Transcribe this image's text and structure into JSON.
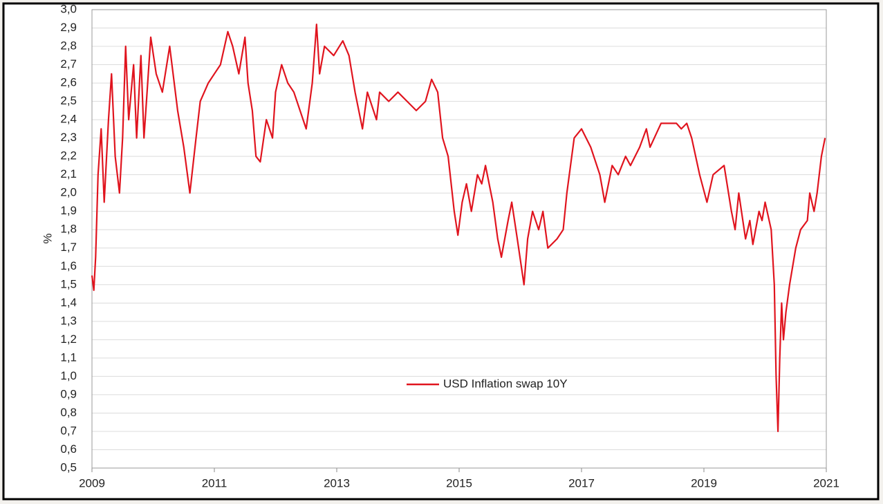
{
  "chart_data": {
    "type": "line",
    "y_label": "%",
    "legend": "center",
    "grid": true,
    "xlim": [
      2009,
      2021
    ],
    "xticks": [
      2009,
      2011,
      2013,
      2015,
      2017,
      2019,
      2021
    ],
    "ylim": [
      0.5,
      3.0
    ],
    "yticks": [
      {
        "value": 0.5,
        "label": "0,5"
      },
      {
        "value": 0.6,
        "label": "0,6"
      },
      {
        "value": 0.7,
        "label": "0,7"
      },
      {
        "value": 0.8,
        "label": "0,8"
      },
      {
        "value": 0.9,
        "label": "0,9"
      },
      {
        "value": 1.0,
        "label": "1,0"
      },
      {
        "value": 1.1,
        "label": "1,1"
      },
      {
        "value": 1.2,
        "label": "1,2"
      },
      {
        "value": 1.3,
        "label": "1,3"
      },
      {
        "value": 1.4,
        "label": "1,4"
      },
      {
        "value": 1.5,
        "label": "1,5"
      },
      {
        "value": 1.6,
        "label": "1,6"
      },
      {
        "value": 1.7,
        "label": "1,7"
      },
      {
        "value": 1.8,
        "label": "1,8"
      },
      {
        "value": 1.9,
        "label": "1,9"
      },
      {
        "value": 2.0,
        "label": "2,0"
      },
      {
        "value": 2.1,
        "label": "2,1"
      },
      {
        "value": 2.2,
        "label": "2,2"
      },
      {
        "value": 2.3,
        "label": "2,3"
      },
      {
        "value": 2.4,
        "label": "2,4"
      },
      {
        "value": 2.5,
        "label": "2,5"
      },
      {
        "value": 2.6,
        "label": "2,6"
      },
      {
        "value": 2.7,
        "label": "2,7"
      },
      {
        "value": 2.8,
        "label": "2,8"
      },
      {
        "value": 2.9,
        "label": "2,9"
      },
      {
        "value": 3.0,
        "label": "3,0"
      }
    ],
    "x": [
      2009.0,
      2009.03,
      2009.06,
      2009.1,
      2009.15,
      2009.2,
      2009.27,
      2009.32,
      2009.38,
      2009.45,
      2009.5,
      2009.55,
      2009.6,
      2009.68,
      2009.73,
      2009.8,
      2009.85,
      2009.9,
      2009.96,
      2010.05,
      2010.15,
      2010.27,
      2010.4,
      2010.5,
      2010.6,
      2010.7,
      2010.77,
      2010.9,
      2011.0,
      2011.1,
      2011.22,
      2011.3,
      2011.4,
      2011.5,
      2011.55,
      2011.62,
      2011.68,
      2011.75,
      2011.85,
      2011.95,
      2012.0,
      2012.1,
      2012.2,
      2012.3,
      2012.4,
      2012.5,
      2012.6,
      2012.67,
      2012.72,
      2012.8,
      2012.95,
      2013.1,
      2013.2,
      2013.3,
      2013.42,
      2013.5,
      2013.65,
      2013.7,
      2013.85,
      2014.0,
      2014.15,
      2014.3,
      2014.45,
      2014.55,
      2014.65,
      2014.73,
      2014.82,
      2014.92,
      2014.98,
      2015.05,
      2015.12,
      2015.2,
      2015.3,
      2015.37,
      2015.43,
      2015.55,
      2015.63,
      2015.69,
      2015.8,
      2015.86,
      2015.95,
      2016.06,
      2016.12,
      2016.2,
      2016.3,
      2016.37,
      2016.45,
      2016.6,
      2016.7,
      2016.76,
      2016.88,
      2017.0,
      2017.15,
      2017.3,
      2017.38,
      2017.5,
      2017.6,
      2017.72,
      2017.8,
      2017.95,
      2018.06,
      2018.12,
      2018.3,
      2018.55,
      2018.63,
      2018.72,
      2018.8,
      2018.93,
      2019.05,
      2019.15,
      2019.33,
      2019.45,
      2019.51,
      2019.57,
      2019.68,
      2019.75,
      2019.8,
      2019.9,
      2019.95,
      2020.0,
      2020.1,
      2020.15,
      2020.18,
      2020.21,
      2020.24,
      2020.27,
      2020.3,
      2020.34,
      2020.4,
      2020.5,
      2020.58,
      2020.69,
      2020.73,
      2020.8,
      2020.85,
      2020.92,
      2020.98
    ],
    "series": [
      {
        "name": "USD Inflation swap 10Y",
        "color": "#e0141e",
        "values": [
          1.55,
          1.47,
          1.65,
          2.1,
          2.35,
          1.95,
          2.4,
          2.65,
          2.2,
          2.0,
          2.3,
          2.8,
          2.4,
          2.7,
          2.3,
          2.75,
          2.3,
          2.55,
          2.85,
          2.65,
          2.55,
          2.8,
          2.45,
          2.25,
          2.0,
          2.3,
          2.5,
          2.6,
          2.65,
          2.7,
          2.88,
          2.8,
          2.65,
          2.85,
          2.6,
          2.45,
          2.2,
          2.17,
          2.4,
          2.3,
          2.55,
          2.7,
          2.6,
          2.55,
          2.45,
          2.35,
          2.6,
          2.92,
          2.65,
          2.8,
          2.75,
          2.83,
          2.75,
          2.55,
          2.35,
          2.55,
          2.4,
          2.55,
          2.5,
          2.55,
          2.5,
          2.45,
          2.5,
          2.62,
          2.55,
          2.3,
          2.2,
          1.9,
          1.77,
          1.95,
          2.05,
          1.9,
          2.1,
          2.05,
          2.15,
          1.95,
          1.75,
          1.65,
          1.85,
          1.95,
          1.75,
          1.5,
          1.75,
          1.9,
          1.8,
          1.9,
          1.7,
          1.75,
          1.8,
          2.0,
          2.3,
          2.35,
          2.25,
          2.1,
          1.95,
          2.15,
          2.1,
          2.2,
          2.15,
          2.25,
          2.35,
          2.25,
          2.38,
          2.38,
          2.35,
          2.38,
          2.3,
          2.1,
          1.95,
          2.1,
          2.15,
          1.9,
          1.8,
          2.0,
          1.75,
          1.85,
          1.72,
          1.9,
          1.85,
          1.95,
          1.8,
          1.5,
          1.0,
          0.7,
          1.1,
          1.4,
          1.2,
          1.35,
          1.5,
          1.7,
          1.8,
          1.85,
          2.0,
          1.9,
          2.0,
          2.2,
          2.3
        ]
      }
    ]
  }
}
